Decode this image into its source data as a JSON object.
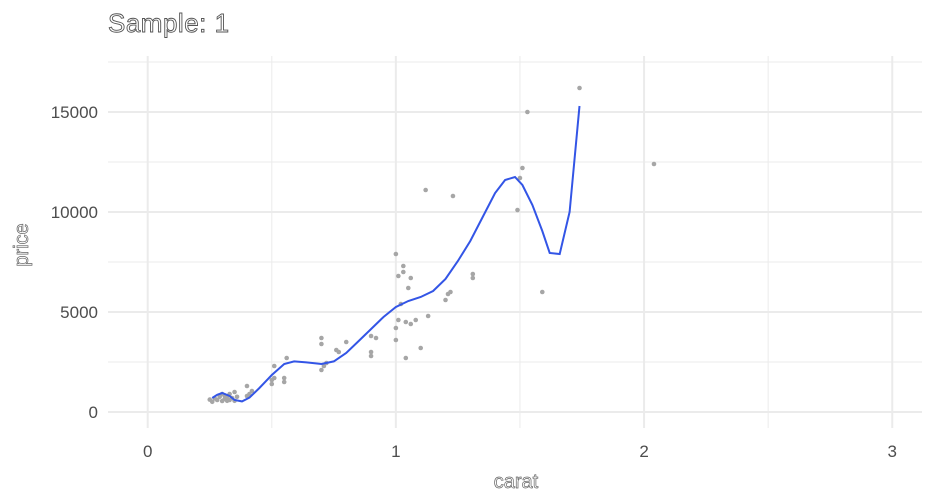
{
  "chart_data": {
    "type": "scatter",
    "title": "Sample: 1",
    "xlabel": "carat",
    "ylabel": "price",
    "xlim": [
      -0.16,
      3.12
    ],
    "ylim": [
      -800,
      17800
    ],
    "x_ticks": [
      0,
      1,
      2,
      3
    ],
    "x_tick_labels": [
      "0",
      "1",
      "2",
      "3"
    ],
    "y_ticks": [
      0,
      5000,
      10000,
      15000
    ],
    "y_tick_labels": [
      "0",
      "5000",
      "10000",
      "15000"
    ],
    "grid": true,
    "legend": "none",
    "colors": {
      "points": "#a6a6a6",
      "smooth": "#3355e6",
      "grid": "#ebebeb"
    },
    "points": [
      [
        0.25,
        620
      ],
      [
        0.26,
        510
      ],
      [
        0.27,
        680
      ],
      [
        0.28,
        600
      ],
      [
        0.29,
        760
      ],
      [
        0.3,
        550
      ],
      [
        0.3,
        900
      ],
      [
        0.31,
        650
      ],
      [
        0.31,
        820
      ],
      [
        0.32,
        720
      ],
      [
        0.32,
        560
      ],
      [
        0.33,
        900
      ],
      [
        0.33,
        600
      ],
      [
        0.34,
        700
      ],
      [
        0.35,
        1000
      ],
      [
        0.35,
        560
      ],
      [
        0.36,
        760
      ],
      [
        0.4,
        800
      ],
      [
        0.4,
        1300
      ],
      [
        0.41,
        900
      ],
      [
        0.42,
        1050
      ],
      [
        0.5,
        1400
      ],
      [
        0.5,
        1600
      ],
      [
        0.51,
        1700
      ],
      [
        0.51,
        2300
      ],
      [
        0.55,
        1500
      ],
      [
        0.55,
        1700
      ],
      [
        0.56,
        2700
      ],
      [
        0.7,
        2100
      ],
      [
        0.7,
        3400
      ],
      [
        0.7,
        3700
      ],
      [
        0.71,
        2300
      ],
      [
        0.72,
        2450
      ],
      [
        0.76,
        3100
      ],
      [
        0.77,
        3000
      ],
      [
        0.8,
        3500
      ],
      [
        0.9,
        2800
      ],
      [
        0.9,
        3000
      ],
      [
        0.9,
        3800
      ],
      [
        0.92,
        3700
      ],
      [
        1.0,
        3600
      ],
      [
        1.0,
        4200
      ],
      [
        1.0,
        7900
      ],
      [
        1.01,
        4600
      ],
      [
        1.01,
        6800
      ],
      [
        1.02,
        5400
      ],
      [
        1.03,
        7300
      ],
      [
        1.03,
        7000
      ],
      [
        1.04,
        4500
      ],
      [
        1.04,
        2700
      ],
      [
        1.05,
        6200
      ],
      [
        1.06,
        6700
      ],
      [
        1.06,
        4400
      ],
      [
        1.08,
        4600
      ],
      [
        1.1,
        3200
      ],
      [
        1.12,
        11100
      ],
      [
        1.13,
        4800
      ],
      [
        1.2,
        5600
      ],
      [
        1.21,
        5900
      ],
      [
        1.22,
        6000
      ],
      [
        1.23,
        10800
      ],
      [
        1.31,
        6700
      ],
      [
        1.31,
        6900
      ],
      [
        1.49,
        10100
      ],
      [
        1.5,
        11700
      ],
      [
        1.51,
        12200
      ],
      [
        1.53,
        15000
      ],
      [
        1.59,
        6000
      ],
      [
        1.74,
        16200
      ],
      [
        2.04,
        12400
      ]
    ],
    "smooth": [
      [
        0.26,
        700
      ],
      [
        0.28,
        860
      ],
      [
        0.3,
        950
      ],
      [
        0.33,
        800
      ],
      [
        0.35,
        600
      ],
      [
        0.38,
        530
      ],
      [
        0.41,
        720
      ],
      [
        0.45,
        1200
      ],
      [
        0.5,
        1850
      ],
      [
        0.55,
        2400
      ],
      [
        0.59,
        2530
      ],
      [
        0.64,
        2480
      ],
      [
        0.7,
        2400
      ],
      [
        0.75,
        2530
      ],
      [
        0.8,
        2950
      ],
      [
        0.85,
        3550
      ],
      [
        0.9,
        4150
      ],
      [
        0.95,
        4750
      ],
      [
        1.0,
        5250
      ],
      [
        1.05,
        5550
      ],
      [
        1.1,
        5750
      ],
      [
        1.15,
        6050
      ],
      [
        1.2,
        6650
      ],
      [
        1.25,
        7550
      ],
      [
        1.3,
        8550
      ],
      [
        1.35,
        9750
      ],
      [
        1.4,
        10950
      ],
      [
        1.44,
        11600
      ],
      [
        1.48,
        11750
      ],
      [
        1.51,
        11350
      ],
      [
        1.55,
        10350
      ],
      [
        1.59,
        9050
      ],
      [
        1.62,
        7950
      ],
      [
        1.66,
        7900
      ],
      [
        1.7,
        10000
      ],
      [
        1.74,
        15300
      ]
    ]
  }
}
